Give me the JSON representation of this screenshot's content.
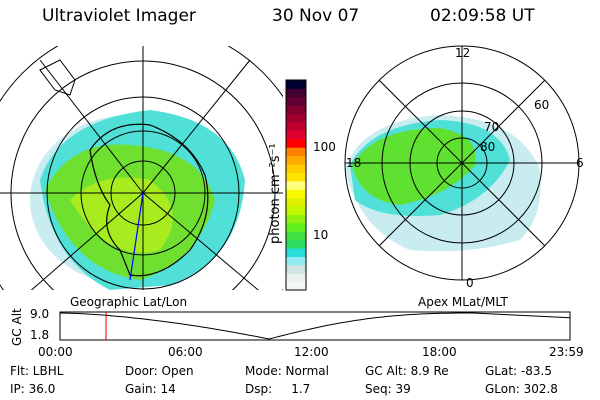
{
  "header": {
    "instrument": "Ultraviolet Imager",
    "date": "30 Nov 07",
    "time": "02:09:58 UT"
  },
  "left_map": {
    "label": "Geographic Lat/Lon"
  },
  "right_map": {
    "label": "Apex MLat/MLT",
    "mlt_labels": {
      "top": "12",
      "bottom": "0",
      "left": "18",
      "right": "6"
    },
    "lat_labels": [
      "80",
      "70",
      "60"
    ]
  },
  "colorbar": {
    "unit_label": "photon cm⁻²s⁻¹",
    "ticks": [
      "100",
      "10"
    ],
    "scale": "log",
    "colors": [
      "#f4f8f4",
      "#e8f2ec",
      "#d0e4e4",
      "#90ecf0",
      "#28dcd8",
      "#2cdc60",
      "#40e040",
      "#60f020",
      "#90f010",
      "#c0f800",
      "#e0f000",
      "#f8f800",
      "#ffff80",
      "#ffe400",
      "#ffcc00",
      "#ffa800",
      "#ff8000",
      "#ff0000",
      "#e00030",
      "#c00030",
      "#a00030",
      "#800030",
      "#600030",
      "#400030",
      "#000030"
    ]
  },
  "timeline": {
    "ylabel": "GC Alt",
    "yticks": [
      "9.0",
      "1.8"
    ],
    "xticks": [
      "00:00",
      "06:00",
      "12:00",
      "18:00",
      "23:59"
    ],
    "current_time_fraction": 0.0903,
    "marker_color": "#e00000"
  },
  "info": {
    "row1": [
      "Flt: LBHL",
      "Door: Open",
      "Mode: Normal",
      "GC Alt: 8.9 Re",
      "GLat: -83.5"
    ],
    "row2": [
      "IP: 36.0",
      "Gain: 14",
      "Dsp:     1.7",
      "Seq: 39",
      "GLon: 302.8"
    ]
  }
}
